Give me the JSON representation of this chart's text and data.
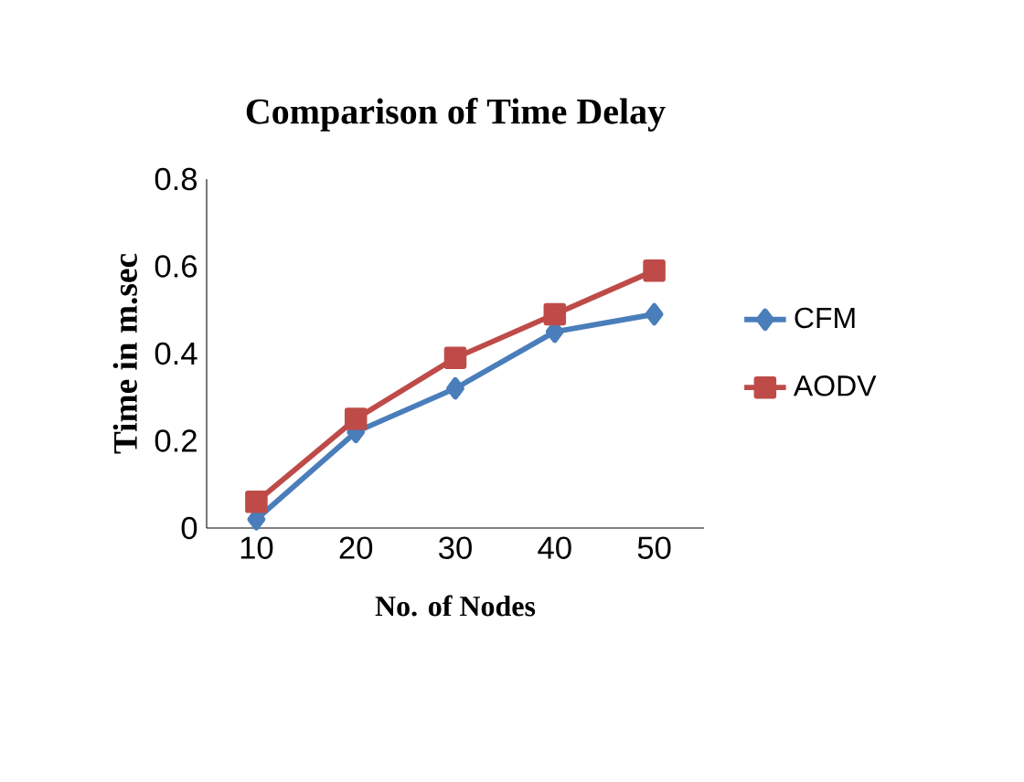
{
  "chart_data": {
    "type": "line",
    "title": "Comparison  of Time Delay",
    "xlabel": "No. of Nodes",
    "ylabel": "Time in m.sec",
    "categories": [
      "10",
      "20",
      "30",
      "40",
      "50"
    ],
    "series": [
      {
        "name": "CFM",
        "color": "#4a7ebb",
        "marker": "diamond",
        "values": [
          0.02,
          0.22,
          0.32,
          0.45,
          0.49
        ]
      },
      {
        "name": "AODV",
        "color": "#be4b48",
        "marker": "square",
        "values": [
          0.06,
          0.25,
          0.39,
          0.49,
          0.59
        ]
      }
    ],
    "ylim": [
      0,
      0.8
    ],
    "yticks": [
      0,
      0.2,
      0.4,
      0.6,
      0.8
    ],
    "grid": false,
    "legend": "right"
  }
}
